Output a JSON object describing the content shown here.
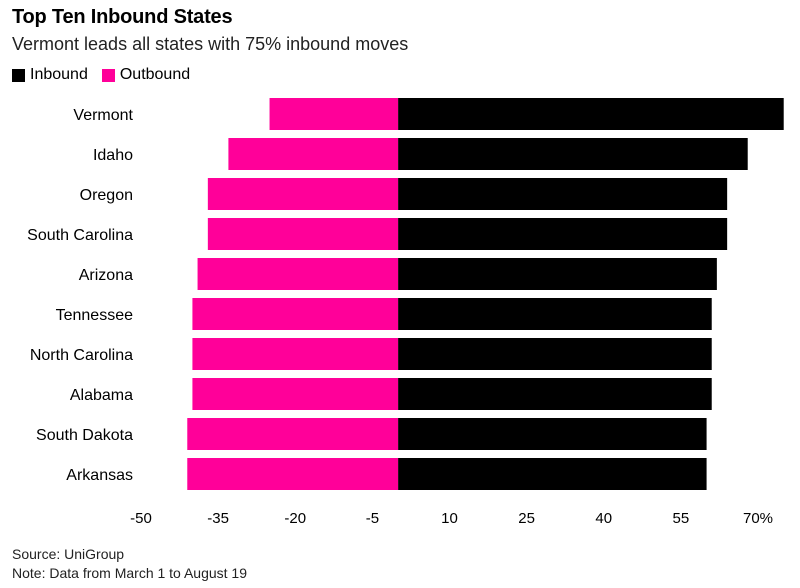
{
  "title": "Top Ten Inbound States",
  "subtitle": "Vermont leads all states with 75% inbound moves",
  "legend": [
    {
      "label": "Inbound",
      "color": "#000000"
    },
    {
      "label": "Outbound",
      "color": "#ff0099"
    }
  ],
  "source": "Source: UniGroup",
  "note": "Note: Data from March 1 to August 19",
  "chart_data": {
    "type": "bar",
    "orientation": "horizontal",
    "stacked": "diverging",
    "categories": [
      "Vermont",
      "Idaho",
      "Oregon",
      "South Carolina",
      "Arizona",
      "Tennessee",
      "North Carolina",
      "Alabama",
      "South Dakota",
      "Arkansas"
    ],
    "series": [
      {
        "name": "Inbound",
        "color": "#000000",
        "values": [
          75,
          68,
          64,
          64,
          62,
          61,
          61,
          61,
          60,
          60
        ]
      },
      {
        "name": "Outbound",
        "color": "#ff0099",
        "values": [
          -25,
          -33,
          -37,
          -37,
          -39,
          -40,
          -40,
          -40,
          -41,
          -41
        ]
      }
    ],
    "x_ticks": [
      -50,
      -35,
      -20,
      -5,
      10,
      25,
      40,
      55,
      70
    ],
    "x_tick_labels": [
      "-50",
      "-35",
      "-20",
      "-5",
      "10",
      "25",
      "40",
      "55",
      "70%"
    ],
    "xlim": [
      -50,
      75
    ],
    "grid": false,
    "legend_position": "top-left"
  }
}
